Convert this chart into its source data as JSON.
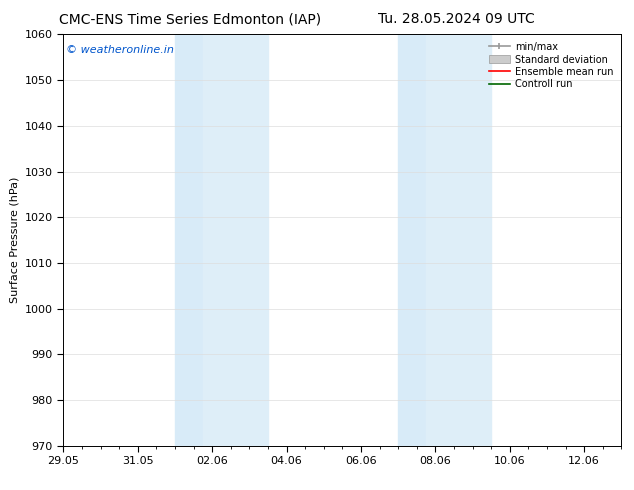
{
  "title_left": "CMC-ENS Time Series Edmonton (IAP)",
  "title_right": "Tu. 28.05.2024 09 UTC",
  "ylabel": "Surface Pressure (hPa)",
  "ylim": [
    970,
    1060
  ],
  "yticks": [
    970,
    980,
    990,
    1000,
    1010,
    1020,
    1030,
    1040,
    1050,
    1060
  ],
  "xtick_labels": [
    "29.05",
    "31.05",
    "02.06",
    "04.06",
    "06.06",
    "08.06",
    "10.06",
    "12.06"
  ],
  "xtick_positions_days": [
    0,
    2,
    4,
    6,
    8,
    10,
    12,
    14
  ],
  "xlim": [
    0,
    15
  ],
  "shaded_bands": [
    {
      "x_start_day": 3.0,
      "x_end_day": 3.75,
      "color": "#d6e8f7"
    },
    {
      "x_start_day": 3.75,
      "x_end_day": 5.5,
      "color": "#ddeeff"
    },
    {
      "x_start_day": 9.0,
      "x_end_day": 9.75,
      "color": "#d6e8f7"
    },
    {
      "x_start_day": 9.75,
      "x_end_day": 11.5,
      "color": "#ddeeff"
    }
  ],
  "watermark_text": "© weatheronline.in",
  "watermark_color": "#0055cc",
  "watermark_fontsize": 8,
  "legend_labels": [
    "min/max",
    "Standard deviation",
    "Ensemble mean run",
    "Controll run"
  ],
  "legend_colors_line": [
    "#999999",
    "#cccccc",
    "#ff0000",
    "#006600"
  ],
  "background_color": "#ffffff",
  "plot_bg_color": "#ffffff",
  "title_fontsize": 10,
  "axis_fontsize": 8,
  "tick_fontsize": 8
}
